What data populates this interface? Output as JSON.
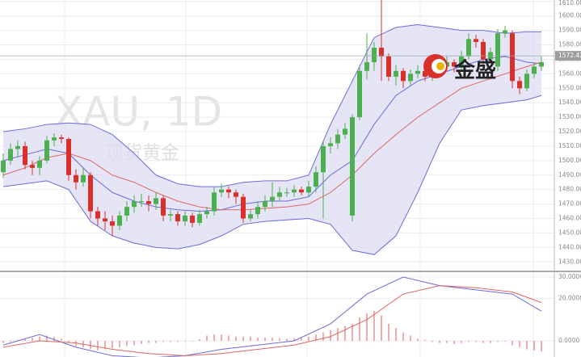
{
  "chart_data": {
    "type": "candlestick",
    "title": "XAU, 1D",
    "subtitle": "现货黄金",
    "logo_text": "金盛",
    "last_price": 1572.42,
    "ylim": [
      1424,
      1611
    ],
    "yticks": [
      {
        "value": 1430,
        "label": "1430.00"
      },
      {
        "value": 1440,
        "label": "1440.00"
      },
      {
        "value": 1450,
        "label": "1450.00"
      },
      {
        "value": 1460,
        "label": "1460.00"
      },
      {
        "value": 1470,
        "label": "1470.00"
      },
      {
        "value": 1480,
        "label": "1480.00"
      },
      {
        "value": 1490,
        "label": "1490.00"
      },
      {
        "value": 1500,
        "label": "1500.00"
      },
      {
        "value": 1510,
        "label": "1510.00"
      },
      {
        "value": 1520,
        "label": "1520.00"
      },
      {
        "value": 1530,
        "label": "1530.00"
      },
      {
        "value": 1540,
        "label": "1540.00"
      },
      {
        "value": 1550,
        "label": "1550.00"
      },
      {
        "value": 1560,
        "label": "1560.00"
      },
      {
        "value": 1570,
        "label": "1570.00"
      },
      {
        "value": 1580,
        "label": "1580.00"
      },
      {
        "value": 1590,
        "label": "1590.00"
      },
      {
        "value": 1600,
        "label": "1600.00"
      },
      {
        "value": 1610,
        "label": "1610.00"
      }
    ],
    "grid": true,
    "up_color": "#4caf50",
    "down_color": "#d9302b",
    "ohlc": [
      [
        1492,
        1505,
        1488,
        1500
      ],
      [
        1500,
        1512,
        1497,
        1508
      ],
      [
        1508,
        1514,
        1502,
        1510
      ],
      [
        1510,
        1513,
        1494,
        1497
      ],
      [
        1497,
        1500,
        1490,
        1495
      ],
      [
        1495,
        1503,
        1490,
        1500
      ],
      [
        1500,
        1517,
        1498,
        1514
      ],
      [
        1514,
        1519,
        1510,
        1516
      ],
      [
        1516,
        1518,
        1512,
        1515
      ],
      [
        1515,
        1516,
        1486,
        1490
      ],
      [
        1490,
        1494,
        1480,
        1485
      ],
      [
        1485,
        1495,
        1482,
        1490
      ],
      [
        1490,
        1492,
        1460,
        1465
      ],
      [
        1465,
        1468,
        1455,
        1460
      ],
      [
        1460,
        1465,
        1452,
        1458
      ],
      [
        1458,
        1462,
        1448,
        1455
      ],
      [
        1455,
        1465,
        1452,
        1462
      ],
      [
        1462,
        1472,
        1458,
        1468
      ],
      [
        1468,
        1476,
        1464,
        1472
      ],
      [
        1472,
        1477,
        1468,
        1472
      ],
      [
        1472,
        1476,
        1465,
        1470
      ],
      [
        1470,
        1478,
        1466,
        1474
      ],
      [
        1474,
        1476,
        1458,
        1462
      ],
      [
        1462,
        1466,
        1458,
        1463
      ],
      [
        1463,
        1465,
        1455,
        1458
      ],
      [
        1458,
        1465,
        1455,
        1462
      ],
      [
        1462,
        1464,
        1454,
        1457
      ],
      [
        1457,
        1466,
        1455,
        1463
      ],
      [
        1463,
        1468,
        1460,
        1465
      ],
      [
        1465,
        1482,
        1462,
        1478
      ],
      [
        1478,
        1484,
        1475,
        1480
      ],
      [
        1480,
        1482,
        1474,
        1478
      ],
      [
        1478,
        1480,
        1470,
        1475
      ],
      [
        1475,
        1477,
        1457,
        1460
      ],
      [
        1460,
        1466,
        1458,
        1463
      ],
      [
        1463,
        1472,
        1460,
        1468
      ],
      [
        1468,
        1476,
        1465,
        1472
      ],
      [
        1472,
        1485,
        1468,
        1475
      ],
      [
        1475,
        1482,
        1472,
        1478
      ],
      [
        1478,
        1481,
        1475,
        1478
      ],
      [
        1478,
        1483,
        1475,
        1480
      ],
      [
        1480,
        1482,
        1476,
        1478
      ],
      [
        1478,
        1486,
        1475,
        1482
      ],
      [
        1482,
        1496,
        1478,
        1492
      ],
      [
        1492,
        1514,
        1460,
        1510
      ],
      [
        1510,
        1516,
        1505,
        1512
      ],
      [
        1512,
        1522,
        1508,
        1518
      ],
      [
        1518,
        1526,
        1515,
        1522
      ],
      [
        1462,
        1532,
        1458,
        1530
      ],
      [
        1530,
        1566,
        1528,
        1562
      ],
      [
        1562,
        1588,
        1556,
        1568
      ],
      [
        1568,
        1582,
        1562,
        1578
      ],
      [
        1578,
        1612,
        1555,
        1572
      ],
      [
        1572,
        1574,
        1555,
        1558
      ],
      [
        1558,
        1566,
        1552,
        1562
      ],
      [
        1562,
        1564,
        1550,
        1555
      ],
      [
        1555,
        1563,
        1552,
        1560
      ],
      [
        1560,
        1566,
        1557,
        1562
      ],
      [
        1562,
        1565,
        1555,
        1558
      ],
      [
        1558,
        1569,
        1555,
        1566
      ],
      [
        1566,
        1570,
        1562,
        1565
      ],
      [
        1565,
        1572,
        1562,
        1568
      ],
      [
        1568,
        1570,
        1561,
        1565
      ],
      [
        1565,
        1576,
        1563,
        1572
      ],
      [
        1572,
        1588,
        1570,
        1584
      ],
      [
        1584,
        1587,
        1578,
        1582
      ],
      [
        1582,
        1584,
        1566,
        1570
      ],
      [
        1570,
        1578,
        1567,
        1575
      ],
      [
        1565,
        1591,
        1562,
        1588
      ],
      [
        1588,
        1593,
        1585,
        1590
      ],
      [
        1588,
        1590,
        1550,
        1555
      ],
      [
        1555,
        1558,
        1546,
        1550
      ],
      [
        1550,
        1563,
        1548,
        1560
      ],
      [
        1560,
        1568,
        1557,
        1565
      ],
      [
        1565,
        1572,
        1562,
        1568
      ]
    ],
    "bands": {
      "x": [
        0,
        3,
        6,
        9,
        12,
        15,
        18,
        21,
        24,
        27,
        30,
        33,
        36,
        39,
        42,
        45,
        48,
        51,
        54,
        57,
        60,
        63,
        66,
        69,
        72,
        74
      ],
      "upper": [
        1520,
        1522,
        1525,
        1526,
        1525,
        1518,
        1505,
        1490,
        1484,
        1482,
        1482,
        1485,
        1486,
        1486,
        1490,
        1525,
        1555,
        1585,
        1592,
        1594,
        1592,
        1590,
        1590,
        1588,
        1589,
        1589
      ],
      "middle": [
        1500,
        1504,
        1508,
        1505,
        1490,
        1478,
        1472,
        1468,
        1466,
        1465,
        1466,
        1470,
        1472,
        1472,
        1475,
        1490,
        1500,
        1525,
        1545,
        1555,
        1560,
        1565,
        1570,
        1572,
        1568,
        1567
      ],
      "lower": [
        1482,
        1484,
        1486,
        1480,
        1458,
        1448,
        1443,
        1440,
        1439,
        1442,
        1448,
        1456,
        1458,
        1459,
        1460,
        1456,
        1438,
        1435,
        1448,
        1478,
        1512,
        1535,
        1538,
        1540,
        1542,
        1545
      ],
      "ma": [
        1490,
        1495,
        1502,
        1505,
        1500,
        1490,
        1485,
        1478,
        1472,
        1468,
        1466,
        1466,
        1467,
        1468,
        1470,
        1478,
        1490,
        1505,
        1518,
        1530,
        1540,
        1550,
        1555,
        1560,
        1565,
        1568
      ],
      "band_color": "#6b6bdc",
      "fill_color": "#dcdcf2",
      "ma_color": "#e06666"
    },
    "macd": {
      "ylim": [
        -7.6,
        32.3
      ],
      "yticks": [
        {
          "value": 0,
          "label": "0.0000"
        },
        {
          "value": 20,
          "label": "20.0000"
        },
        {
          "value": 30,
          "label": "30.0000"
        }
      ],
      "histogram": [
        -1,
        -0.5,
        0.5,
        1,
        1.5,
        2,
        2.5,
        2,
        1,
        -1,
        -2.5,
        -3,
        -4,
        -4.5,
        -4,
        -3.5,
        -3,
        -2.5,
        -2,
        -1.5,
        -1,
        -1,
        -0.5,
        -0.5,
        -0.5,
        -0.3,
        -0.2,
        0.8,
        2.5,
        3,
        3,
        2.5,
        2,
        2,
        2,
        1.5,
        1.5,
        1.5,
        1.2,
        1,
        1.2,
        1.5,
        2,
        3,
        4,
        5,
        6,
        7,
        8,
        11,
        13,
        14,
        12,
        8,
        6,
        4,
        2.5,
        1,
        0.5,
        -0.5,
        -1,
        -1,
        -1.5,
        -1,
        -0.5,
        -0.5,
        -1,
        -1,
        -0.5,
        -0.3,
        -2,
        -3,
        -4,
        -4.5,
        -5
      ],
      "x": [
        0,
        5,
        10,
        15,
        20,
        25,
        30,
        35,
        40,
        45,
        50,
        55,
        60,
        65,
        70,
        74
      ],
      "macd": [
        -2,
        3,
        -3,
        -7,
        -8,
        -7,
        -4,
        -2,
        0,
        8,
        22,
        30,
        26,
        24,
        22,
        14
      ],
      "signal": [
        -3,
        0,
        -1,
        -4,
        -6,
        -7,
        -6,
        -4,
        -2,
        2,
        10,
        22,
        26,
        25,
        23,
        18
      ],
      "hist_color": "#e57373",
      "macd_color": "#6b6bdc",
      "signal_color": "#e06666"
    }
  }
}
